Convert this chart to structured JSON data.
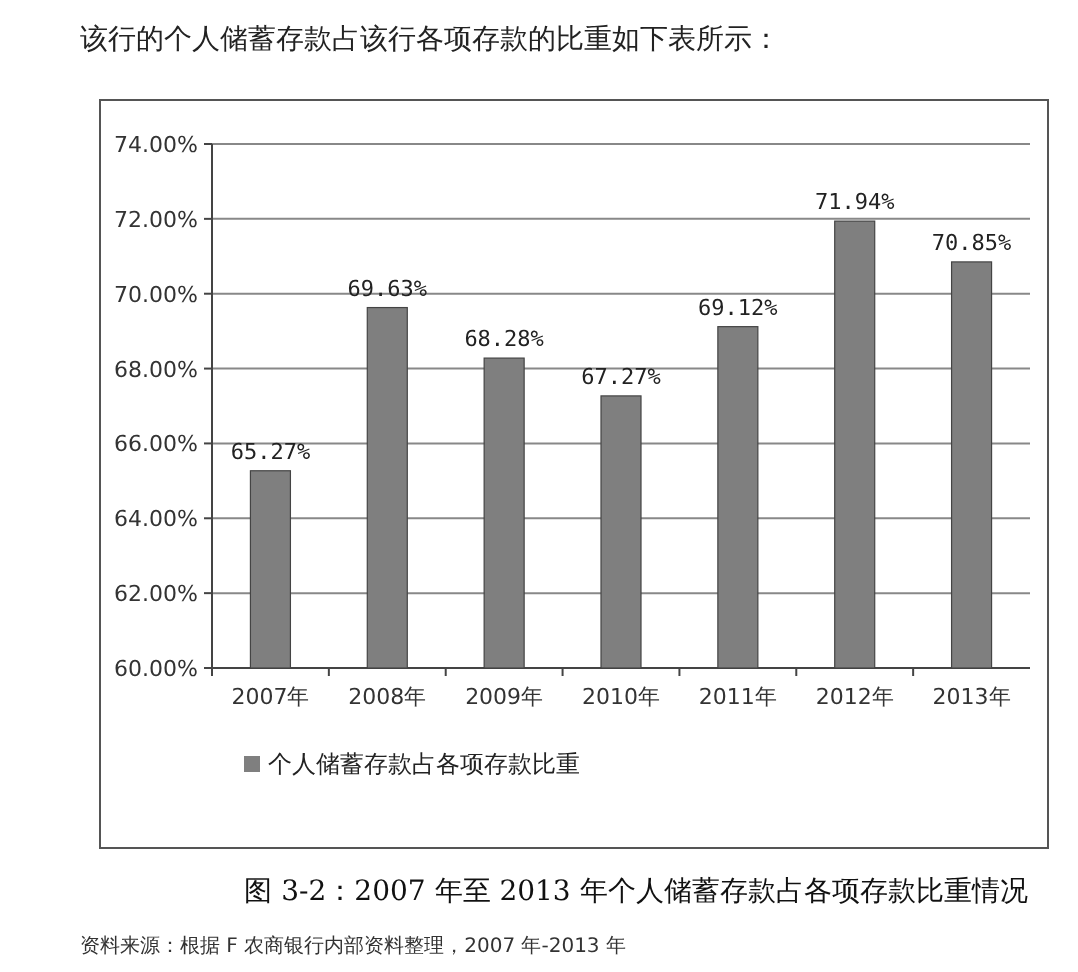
{
  "chart_data": {
    "type": "bar",
    "title": "图 3-2：2007 年至 2013 年个人储蓄存款占各项存款比重情况",
    "annotations": [
      "该行的个人储蓄存款占该行各项存款的比重如下表所示：",
      "资料来源：根据 F 农商银行内部资料整理，2007 年-2013 年"
    ],
    "categories": [
      "2007年",
      "2008年",
      "2009年",
      "2010年",
      "2011年",
      "2012年",
      "2013年"
    ],
    "series": [
      {
        "name": "个人储蓄存款占各项存款比重",
        "color": "#7f7f7f",
        "values": [
          65.27,
          69.63,
          68.28,
          67.27,
          69.12,
          71.94,
          70.85
        ],
        "value_labels": [
          "65.27%",
          "69.63%",
          "68.28%",
          "67.27%",
          "69.12%",
          "71.94%",
          "70.85%"
        ]
      }
    ],
    "ylim": [
      60,
      74
    ],
    "yticks": [
      {
        "value": 60,
        "label": "60.00%"
      },
      {
        "value": 62,
        "label": "62.00%"
      },
      {
        "value": 64,
        "label": "64.00%"
      },
      {
        "value": 66,
        "label": "66.00%"
      },
      {
        "value": 68,
        "label": "68.00%"
      },
      {
        "value": 70,
        "label": "70.00%"
      },
      {
        "value": 72,
        "label": "72.00%"
      },
      {
        "value": 74,
        "label": "74.00%"
      }
    ],
    "grid": "y",
    "legend": "bottom"
  }
}
